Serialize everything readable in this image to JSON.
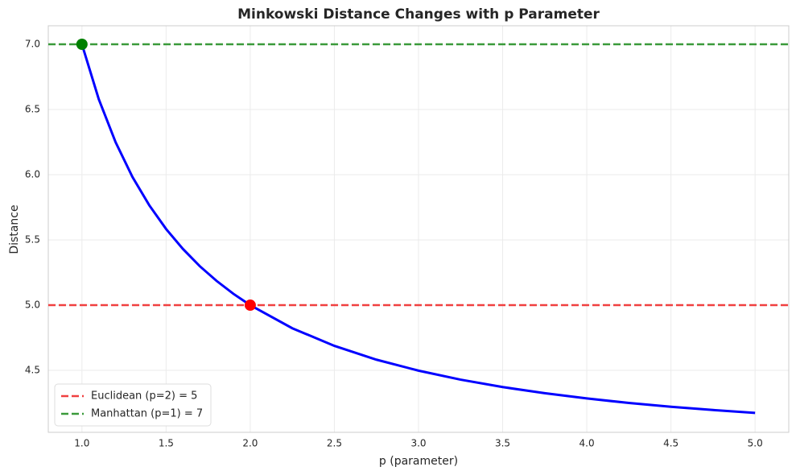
{
  "chart_data": {
    "type": "line",
    "title": "Minkowski Distance Changes with p Parameter",
    "xlabel": "p (parameter)",
    "ylabel": "Distance",
    "x": [
      1.0,
      1.1,
      1.2,
      1.3,
      1.4,
      1.5,
      1.6,
      1.7,
      1.8,
      1.9,
      2.0,
      2.25,
      2.5,
      2.75,
      3.0,
      3.25,
      3.5,
      3.75,
      4.0,
      4.25,
      4.5,
      4.75,
      5.0
    ],
    "values": [
      7.0,
      6.579,
      6.249,
      5.983,
      5.766,
      5.584,
      5.431,
      5.299,
      5.186,
      5.087,
      5.0,
      4.823,
      4.688,
      4.582,
      4.498,
      4.429,
      4.372,
      4.325,
      4.285,
      4.25,
      4.221,
      4.196,
      4.174
    ],
    "color": "#0000ff",
    "reference_lines": [
      {
        "name": "Euclidean (p=2) = 5",
        "value": 5,
        "color": "#f04040"
      },
      {
        "name": "Manhattan (p=1) = 7",
        "value": 7,
        "color": "#3a9a3a"
      }
    ],
    "points": [
      {
        "x": 1,
        "y": 7,
        "color": "#008000"
      },
      {
        "x": 2,
        "y": 5,
        "color": "#ff0000"
      }
    ],
    "xlim": [
      0.8,
      5.2
    ],
    "ylim": [
      4.025,
      7.142
    ],
    "xticks": [
      {
        "value": 1,
        "label": "1.0"
      },
      1.5,
      {
        "value": 2,
        "label": "2.0"
      },
      2.5,
      {
        "value": 3,
        "label": "3.0"
      },
      3.5,
      {
        "value": 4,
        "label": "4.0"
      },
      4.5,
      {
        "value": 5,
        "label": "5.0"
      }
    ],
    "yticks": [
      4.5,
      {
        "value": 5,
        "label": "5.0"
      },
      5.5,
      {
        "value": 6,
        "label": "6.0"
      },
      6.5,
      {
        "value": 7,
        "label": "7.0"
      }
    ],
    "grid": true,
    "legend": "lower left"
  }
}
